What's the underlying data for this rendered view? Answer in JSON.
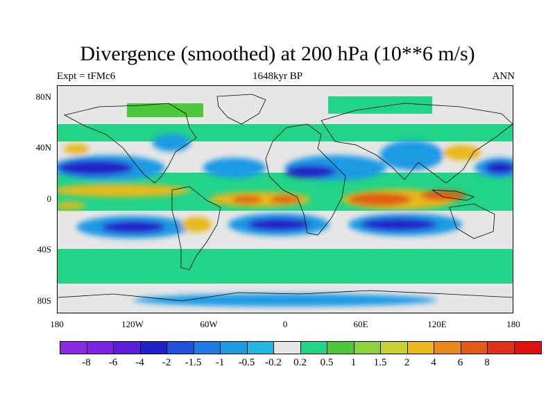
{
  "title": "Divergence (smoothed) at 200 hPa (10**6 m/s)",
  "subtitle_left": "Expt = tFMc6",
  "subtitle_center": "1648kyr BP",
  "subtitle_right": "ANN",
  "lat_labels": [
    "80N",
    "40N",
    "0",
    "40S",
    "80S"
  ],
  "lon_labels": [
    "180",
    "120W",
    "60W",
    "0",
    "60E",
    "120E",
    "180"
  ],
  "colorbar": {
    "colors": [
      "#8a2be2",
      "#7a22e0",
      "#5c1dd8",
      "#2020c8",
      "#1f52d8",
      "#1c7ce2",
      "#1e9ae4",
      "#22b8e2",
      "#e6e6e6",
      "#22d488",
      "#4ec83a",
      "#8ed23a",
      "#c8d232",
      "#e8b81e",
      "#e88a18",
      "#e05c14",
      "#e0301a",
      "#e01010"
    ],
    "labels": [
      "-8",
      "-6",
      "-4",
      "-2",
      "-1.5",
      "-1",
      "-0.5",
      "-0.2",
      "0.2",
      "0.5",
      "1",
      "1.5",
      "2",
      "4",
      "6",
      "8"
    ]
  },
  "map": {
    "lon_range": [
      -180,
      180
    ],
    "lat_range": [
      -90,
      90
    ],
    "field": [
      {
        "level": "negative",
        "color": "#1e9ae4",
        "lon": -140,
        "lat": 25,
        "rx": 45,
        "ry": 10
      },
      {
        "level": "negative",
        "color": "#2020c8",
        "lon": -150,
        "lat": 25,
        "rx": 30,
        "ry": 6
      },
      {
        "level": "negative",
        "color": "#1e9ae4",
        "lon": 40,
        "lat": 25,
        "rx": 40,
        "ry": 10
      },
      {
        "level": "negative",
        "color": "#2020c8",
        "lon": 20,
        "lat": 22,
        "rx": 20,
        "ry": 5
      },
      {
        "level": "negative",
        "color": "#1e9ae4",
        "lon": 100,
        "lat": 35,
        "rx": 25,
        "ry": 12
      },
      {
        "level": "negative",
        "color": "#1e9ae4",
        "lon": 170,
        "lat": 25,
        "rx": 20,
        "ry": 8
      },
      {
        "level": "negative",
        "color": "#2020c8",
        "lon": 170,
        "lat": 25,
        "rx": 12,
        "ry": 5
      },
      {
        "level": "negative",
        "color": "#1e9ae4",
        "lon": -40,
        "lat": 25,
        "rx": 25,
        "ry": 8
      },
      {
        "level": "negative",
        "color": "#1e9ae4",
        "lon": -90,
        "lat": 45,
        "rx": 15,
        "ry": 7
      },
      {
        "level": "negative",
        "color": "#1e9ae4",
        "lon": -120,
        "lat": -22,
        "rx": 45,
        "ry": 9
      },
      {
        "level": "negative",
        "color": "#2020c8",
        "lon": -120,
        "lat": -22,
        "rx": 25,
        "ry": 5
      },
      {
        "level": "negative",
        "color": "#1e9ae4",
        "lon": -5,
        "lat": -20,
        "rx": 40,
        "ry": 9
      },
      {
        "level": "negative",
        "color": "#2020c8",
        "lon": -5,
        "lat": -20,
        "rx": 25,
        "ry": 5
      },
      {
        "level": "negative",
        "color": "#1e9ae4",
        "lon": 95,
        "lat": -20,
        "rx": 45,
        "ry": 9
      },
      {
        "level": "negative",
        "color": "#2020c8",
        "lon": 90,
        "lat": -20,
        "rx": 30,
        "ry": 5
      },
      {
        "level": "negative",
        "color": "#1e9ae4",
        "lon": 0,
        "lat": -80,
        "rx": 120,
        "ry": 5
      },
      {
        "level": "positive",
        "color": "#e8b81e",
        "lon": -130,
        "lat": 7,
        "rx": 55,
        "ry": 5
      },
      {
        "level": "positive",
        "color": "#e8b81e",
        "lon": -20,
        "lat": 0,
        "rx": 40,
        "ry": 6
      },
      {
        "level": "positive",
        "color": "#e05c14",
        "lon": -30,
        "lat": 0,
        "rx": 12,
        "ry": 3
      },
      {
        "level": "positive",
        "color": "#e05c14",
        "lon": 0,
        "lat": 0,
        "rx": 12,
        "ry": 3
      },
      {
        "level": "positive",
        "color": "#e8b81e",
        "lon": 90,
        "lat": 0,
        "rx": 45,
        "ry": 8
      },
      {
        "level": "positive",
        "color": "#e05c14",
        "lon": 75,
        "lat": 0,
        "rx": 25,
        "ry": 5
      },
      {
        "level": "positive",
        "color": "#e05c14",
        "lon": 125,
        "lat": 3,
        "rx": 18,
        "ry": 4
      },
      {
        "level": "positive",
        "color": "#e8b81e",
        "lon": -70,
        "lat": -20,
        "rx": 12,
        "ry": 6
      },
      {
        "level": "positive",
        "color": "#e8b81e",
        "lon": 140,
        "lat": 37,
        "rx": 15,
        "ry": 6
      },
      {
        "level": "positive",
        "color": "#e8b81e",
        "lon": -165,
        "lat": 40,
        "rx": 10,
        "ry": 4
      },
      {
        "level": "positive",
        "color": "#e8b81e",
        "lon": -170,
        "lat": -5,
        "rx": 12,
        "ry": 3
      }
    ]
  }
}
